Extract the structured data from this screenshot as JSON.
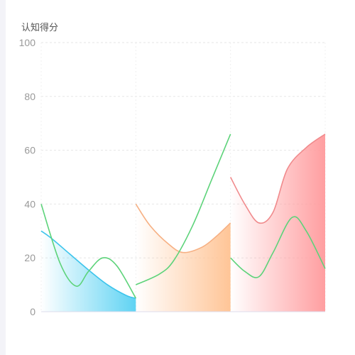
{
  "chart_data": {
    "type": "line",
    "ylabel": "认知得分",
    "ylim": [
      0,
      100
    ],
    "yticks": [
      0,
      20,
      40,
      60,
      80,
      100
    ],
    "grid": true,
    "segments": [
      {
        "area_color": "#5fd3f3",
        "area_series": [
          [
            0,
            30
          ],
          [
            0.1,
            27.5
          ],
          [
            0.3,
            21.5
          ],
          [
            0.5,
            15.5
          ],
          [
            0.7,
            10
          ],
          [
            0.9,
            6
          ],
          [
            1.0,
            5
          ]
        ],
        "lines": [
          {
            "color": "#3cc4ec",
            "values": [
              [
                0,
                30
              ],
              [
                0.1,
                27.5
              ],
              [
                0.3,
                21.5
              ],
              [
                0.5,
                15.5
              ],
              [
                0.7,
                10
              ],
              [
                0.9,
                6
              ],
              [
                1.0,
                5
              ]
            ]
          },
          {
            "color": "#5dd37a",
            "values": [
              [
                0,
                40
              ],
              [
                0.2,
                18
              ],
              [
                0.37,
                9.5
              ],
              [
                0.5,
                15
              ],
              [
                0.65,
                20
              ],
              [
                0.8,
                17
              ],
              [
                1.0,
                5
              ]
            ]
          }
        ]
      },
      {
        "area_color": "#ffc597",
        "area_series": [
          [
            0,
            40
          ],
          [
            0.15,
            32
          ],
          [
            0.35,
            25
          ],
          [
            0.5,
            22
          ],
          [
            0.7,
            24
          ],
          [
            0.85,
            28
          ],
          [
            1.0,
            33
          ]
        ],
        "lines": [
          {
            "color": "#f6b083",
            "values": [
              [
                0,
                40
              ],
              [
                0.15,
                32
              ],
              [
                0.35,
                25
              ],
              [
                0.5,
                22
              ],
              [
                0.7,
                24
              ],
              [
                0.85,
                28
              ],
              [
                1.0,
                33
              ]
            ]
          },
          {
            "color": "#5dd37a",
            "values": [
              [
                0,
                10
              ],
              [
                0.25,
                14
              ],
              [
                0.4,
                19
              ],
              [
                0.6,
                32
              ],
              [
                0.8,
                49
              ],
              [
                1.0,
                66
              ]
            ]
          }
        ]
      },
      {
        "area_color": "#ff9ea0",
        "area_series": [
          [
            0,
            50
          ],
          [
            0.15,
            40
          ],
          [
            0.3,
            33
          ],
          [
            0.45,
            37
          ],
          [
            0.6,
            53
          ],
          [
            0.8,
            61
          ],
          [
            1.0,
            66
          ]
        ],
        "lines": [
          {
            "color": "#f08a8c",
            "values": [
              [
                0,
                50
              ],
              [
                0.15,
                40
              ],
              [
                0.3,
                33
              ],
              [
                0.45,
                37
              ],
              [
                0.6,
                53
              ],
              [
                0.8,
                61
              ],
              [
                1.0,
                66
              ]
            ]
          },
          {
            "color": "#5dd37a",
            "values": [
              [
                0,
                20
              ],
              [
                0.15,
                15
              ],
              [
                0.3,
                13
              ],
              [
                0.45,
                22
              ],
              [
                0.65,
                35
              ],
              [
                0.8,
                30
              ],
              [
                1.0,
                16
              ]
            ]
          }
        ]
      }
    ]
  }
}
